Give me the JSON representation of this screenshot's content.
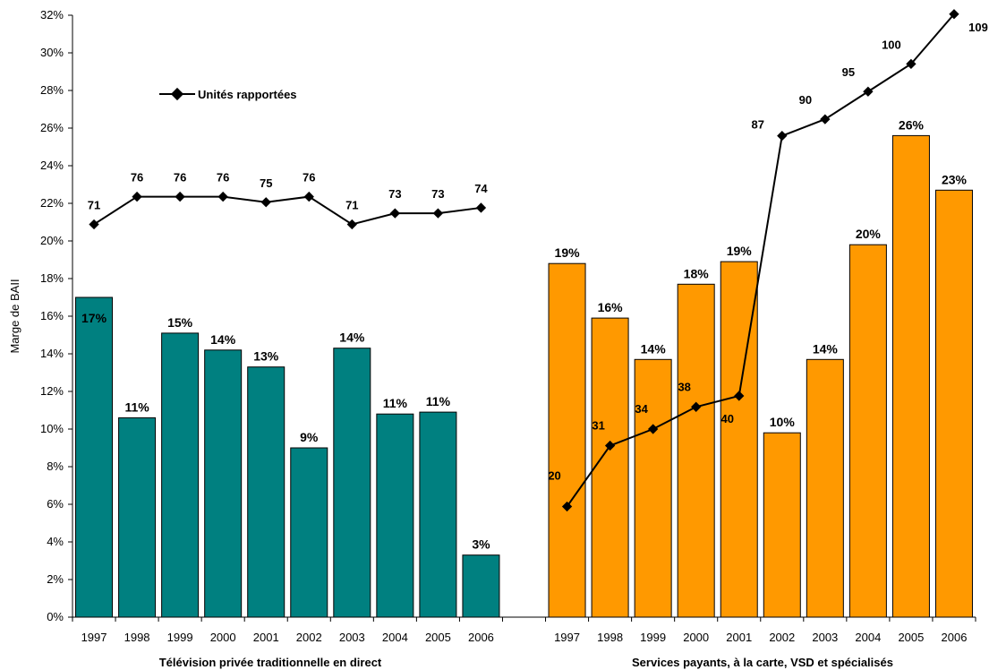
{
  "chart_data": {
    "type": "bar",
    "ylabel": "Marge de BAII",
    "ylim": [
      0,
      32
    ],
    "y_ticks": [
      "0%",
      "2%",
      "4%",
      "6%",
      "8%",
      "10%",
      "12%",
      "14%",
      "16%",
      "18%",
      "20%",
      "22%",
      "24%",
      "26%",
      "28%",
      "30%",
      "32%"
    ],
    "line_legend": "Unités rapportées",
    "colors": {
      "group1": "#008080",
      "group2": "#FF9900",
      "line": "#000000"
    },
    "groups": [
      {
        "label": "Télévision privée traditionnelle en direct",
        "categories": [
          "1997",
          "1998",
          "1999",
          "2000",
          "2001",
          "2002",
          "2003",
          "2004",
          "2005",
          "2006"
        ],
        "values": [
          17.0,
          10.6,
          15.1,
          14.2,
          13.3,
          9.0,
          14.3,
          10.8,
          10.9,
          3.3
        ],
        "value_labels": [
          "17%",
          "11%",
          "15%",
          "14%",
          "13%",
          "9%",
          "14%",
          "11%",
          "11%",
          "3%"
        ],
        "units": [
          71,
          76,
          76,
          76,
          75,
          76,
          71,
          73,
          73,
          74
        ]
      },
      {
        "label": "Services payants, à la carte, VSD et spécialisés",
        "categories": [
          "1997",
          "1998",
          "1999",
          "2000",
          "2001",
          "2002",
          "2003",
          "2004",
          "2005",
          "2006"
        ],
        "values": [
          18.8,
          15.9,
          13.7,
          17.7,
          18.9,
          9.8,
          13.7,
          19.8,
          25.6,
          22.7
        ],
        "value_labels": [
          "19%",
          "16%",
          "14%",
          "18%",
          "19%",
          "10%",
          "14%",
          "20%",
          "26%",
          "23%"
        ],
        "units": [
          20,
          31,
          34,
          38,
          40,
          87,
          90,
          95,
          100,
          109
        ]
      }
    ]
  }
}
